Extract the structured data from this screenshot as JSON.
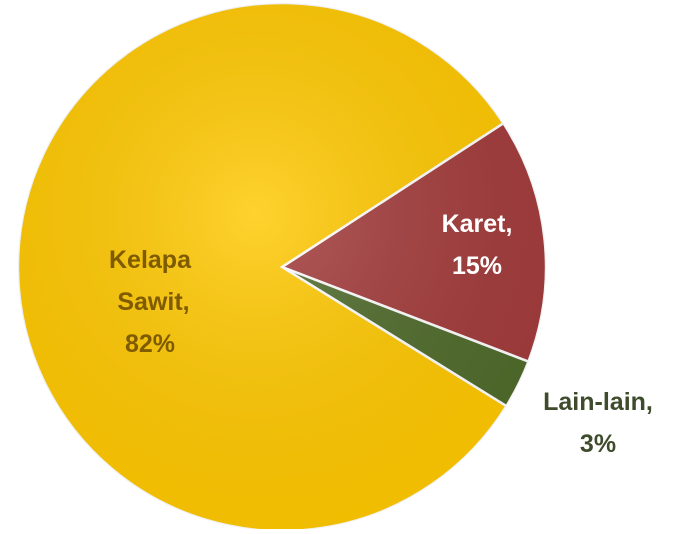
{
  "chart_data": {
    "type": "pie",
    "categories": [
      "Kelapa Sawit,",
      "Karet,",
      "Lain-lain,"
    ],
    "values": [
      82,
      15,
      3
    ],
    "value_labels": [
      "82%",
      "15%",
      "3%"
    ],
    "colors": [
      "#FFC800",
      "#A33B3B",
      "#4F6B2B"
    ],
    "label_colors": [
      "#7F5B00",
      "#FFFFFF",
      "#3F4C2C"
    ]
  }
}
